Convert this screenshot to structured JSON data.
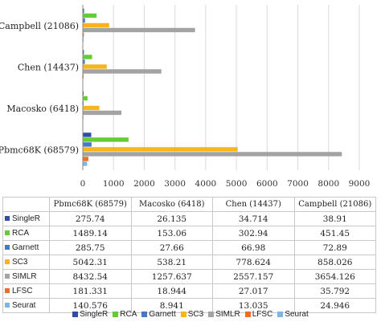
{
  "chart_data": {
    "type": "bar",
    "orientation": "horizontal",
    "categories": [
      "Campbell (21086)",
      "Chen (14437)",
      "Macosko (6418)",
      "Pbmc68K (68579)"
    ],
    "series": [
      {
        "name": "SingleR",
        "color": "#2e4fa3",
        "values": [
          38.91,
          34.714,
          26.135,
          275.74
        ]
      },
      {
        "name": "RCA",
        "color": "#66cc33",
        "values": [
          451.45,
          302.94,
          153.06,
          1489.14
        ]
      },
      {
        "name": "Garnett",
        "color": "#4a76c9",
        "values": [
          72.89,
          66.98,
          27.66,
          285.75
        ]
      },
      {
        "name": "SC3",
        "color": "#f5b51b",
        "values": [
          858.026,
          778.624,
          538.21,
          5042.31
        ]
      },
      {
        "name": "SIMLR",
        "color": "#a3a3a3",
        "values": [
          3654.126,
          2557.157,
          1257.637,
          8432.54
        ]
      },
      {
        "name": "LFSC",
        "color": "#ec6e2b",
        "values": [
          35.792,
          27.017,
          18.944,
          181.331
        ]
      },
      {
        "name": "Seurat",
        "color": "#7fb5e0",
        "values": [
          24.946,
          13.035,
          8.941,
          140.576
        ]
      }
    ],
    "xlim": [
      0,
      9000
    ],
    "xticks": [
      "0",
      "1000",
      "2000",
      "3000",
      "4000",
      "5000",
      "6000",
      "7000",
      "8000",
      "9000"
    ],
    "grid": true,
    "legend_position": "bottom"
  },
  "table": {
    "columns": [
      "Pbmc68K (68579)",
      "Macosko (6418)",
      "Chen (14437)",
      "Campbell (21086)"
    ],
    "rows": [
      {
        "label": "SingleR",
        "color": "#2e4fa3",
        "cells": [
          "275.74",
          "26.135",
          "34.714",
          "38.91"
        ]
      },
      {
        "label": "RCA",
        "color": "#66cc33",
        "cells": [
          "1489.14",
          "153.06",
          "302.94",
          "451.45"
        ]
      },
      {
        "label": "Garnett",
        "color": "#4a76c9",
        "cells": [
          "285.75",
          "27.66",
          "66.98",
          "72.89"
        ]
      },
      {
        "label": "SC3",
        "color": "#f5b51b",
        "cells": [
          "5042.31",
          "538.21",
          "778.624",
          "858.026"
        ]
      },
      {
        "label": "SIMLR",
        "color": "#a3a3a3",
        "cells": [
          "8432.54",
          "1257.637",
          "2557.157",
          "3654.126"
        ]
      },
      {
        "label": "LFSC",
        "color": "#ec6e2b",
        "cells": [
          "181.331",
          "18.944",
          "27.017",
          "35.792"
        ]
      },
      {
        "label": "Seurat",
        "color": "#7fb5e0",
        "cells": [
          "140.576",
          "8.941",
          "13.035",
          "24.946"
        ]
      }
    ]
  }
}
